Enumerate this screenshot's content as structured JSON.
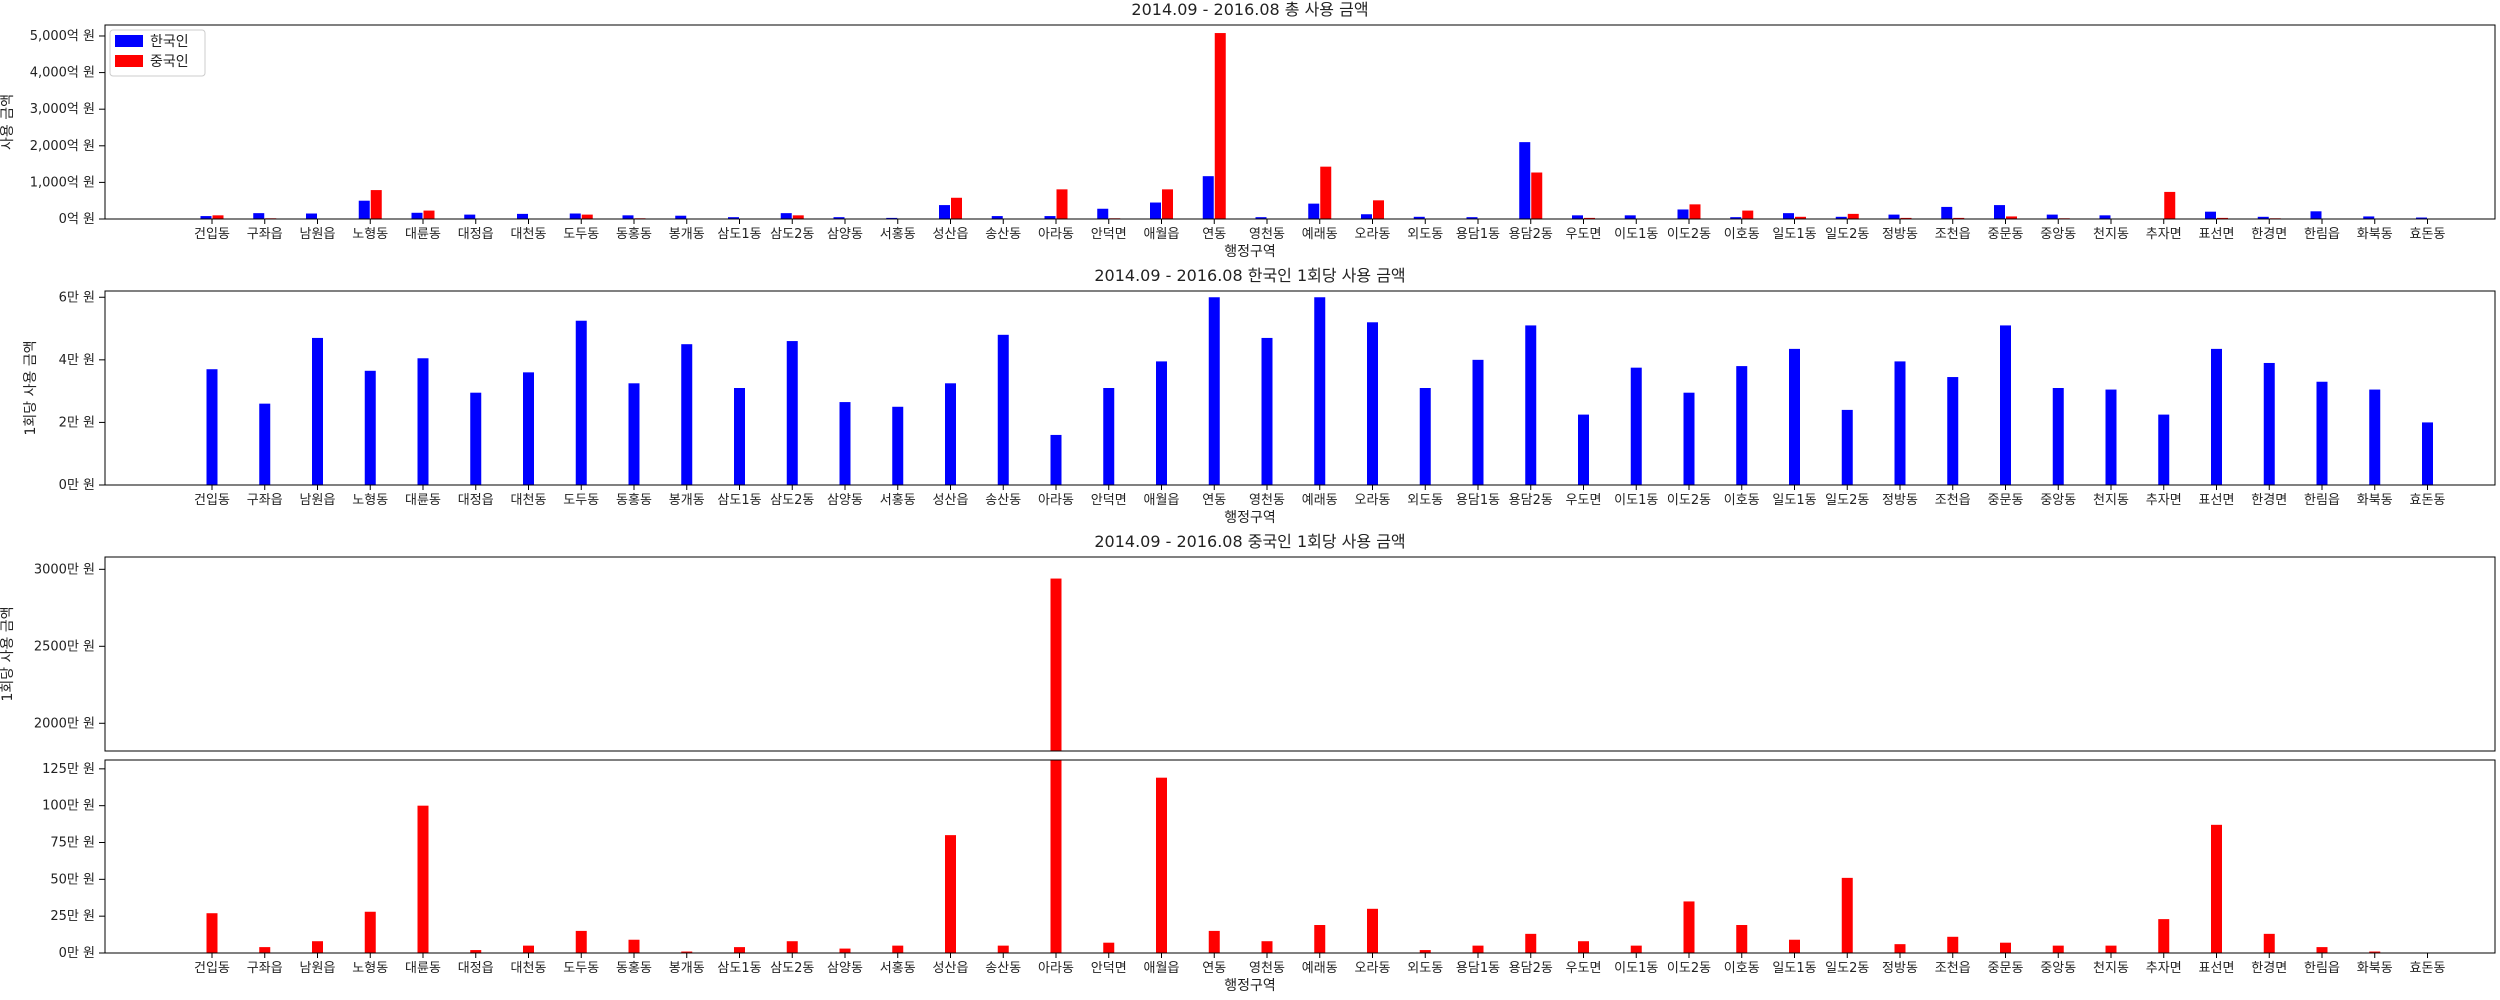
{
  "chart_data": [
    {
      "type": "bar",
      "title": "2014.09 - 2016.08 총 사용 금액",
      "xlabel": "행정구역",
      "ylabel": "사용 금액",
      "ylim": [
        0,
        5300
      ],
      "yticks": [
        0,
        1000,
        2000,
        3000,
        4000,
        5000
      ],
      "ytick_labels": [
        "0억 원",
        "1,000억 원",
        "2,000억 원",
        "3,000억 원",
        "4,000억 원",
        "5,000억 원"
      ],
      "legend": "top-left",
      "categories": [
        "건입동",
        "구좌읍",
        "남원읍",
        "노형동",
        "대륜동",
        "대정읍",
        "대천동",
        "도두동",
        "동홍동",
        "봉개동",
        "삼도1동",
        "삼도2동",
        "삼양동",
        "서홍동",
        "성산읍",
        "송산동",
        "아라동",
        "안덕면",
        "애월읍",
        "연동",
        "영천동",
        "예래동",
        "오라동",
        "외도동",
        "용담1동",
        "용담2동",
        "우도면",
        "이도1동",
        "이도2동",
        "이호동",
        "일도1동",
        "일도2동",
        "정방동",
        "조천읍",
        "중문동",
        "중앙동",
        "천지동",
        "추자면",
        "표선면",
        "한경면",
        "한림읍",
        "화북동",
        "효돈동"
      ],
      "series": [
        {
          "name": "한국인",
          "color": "#0000ff",
          "values": [
            80,
            160,
            150,
            500,
            170,
            120,
            140,
            150,
            100,
            90,
            50,
            160,
            50,
            30,
            380,
            80,
            80,
            280,
            450,
            1170,
            50,
            420,
            130,
            60,
            50,
            2100,
            100,
            100,
            260,
            50,
            160,
            60,
            120,
            330,
            380,
            120,
            100,
            10,
            200,
            60,
            210,
            70,
            40
          ]
        },
        {
          "name": "중국인",
          "color": "#ff0000",
          "values": [
            100,
            20,
            10,
            790,
            230,
            10,
            10,
            120,
            20,
            5,
            5,
            100,
            5,
            5,
            580,
            10,
            810,
            20,
            810,
            5080,
            10,
            1430,
            510,
            10,
            5,
            1270,
            30,
            10,
            400,
            230,
            60,
            140,
            30,
            30,
            70,
            20,
            10,
            740,
            30,
            20,
            10,
            5,
            5
          ]
        }
      ]
    },
    {
      "type": "bar",
      "title": "2014.09 - 2016.08 한국인 1회당 사용 금액",
      "xlabel": "행정구역",
      "ylabel": "1회당 사용 금액",
      "ylim": [
        0,
        6.2
      ],
      "yticks": [
        0,
        2,
        4,
        6
      ],
      "ytick_labels": [
        "0만 원",
        "2만 원",
        "4만 원",
        "6만 원"
      ],
      "categories": [
        "건입동",
        "구좌읍",
        "남원읍",
        "노형동",
        "대륜동",
        "대정읍",
        "대천동",
        "도두동",
        "동홍동",
        "봉개동",
        "삼도1동",
        "삼도2동",
        "삼양동",
        "서홍동",
        "성산읍",
        "송산동",
        "아라동",
        "안덕면",
        "애월읍",
        "연동",
        "영천동",
        "예래동",
        "오라동",
        "외도동",
        "용담1동",
        "용담2동",
        "우도면",
        "이도1동",
        "이도2동",
        "이호동",
        "일도1동",
        "일도2동",
        "정방동",
        "조천읍",
        "중문동",
        "중앙동",
        "천지동",
        "추자면",
        "표선면",
        "한경면",
        "한림읍",
        "화북동",
        "효돈동"
      ],
      "series": [
        {
          "name": "한국인",
          "color": "#0000ff",
          "values": [
            3.7,
            2.6,
            4.7,
            3.65,
            4.05,
            2.95,
            3.6,
            5.25,
            3.25,
            4.5,
            3.1,
            4.6,
            2.65,
            2.5,
            3.25,
            4.8,
            1.6,
            3.1,
            3.95,
            6.0,
            4.7,
            6.0,
            5.2,
            3.1,
            4.0,
            5.1,
            2.25,
            3.75,
            2.95,
            3.8,
            4.35,
            2.4,
            3.95,
            3.45,
            5.1,
            3.1,
            3.05,
            2.25,
            4.35,
            3.9,
            3.3,
            3.05,
            2.0
          ]
        }
      ]
    },
    {
      "type": "bar",
      "title": "2014.09 - 2016.08 중국인 1회당 사용 금액",
      "xlabel": "행정구역",
      "ylabel": "1회당 사용 금액",
      "broken_axis": true,
      "ylim_upper": [
        1820,
        3080
      ],
      "ylim_lower": [
        0,
        131
      ],
      "yticks_upper": [
        2000,
        2500,
        3000
      ],
      "ytick_labels_upper": [
        "2000만 원",
        "2500만 원",
        "3000만 원"
      ],
      "yticks_lower": [
        0,
        25,
        50,
        75,
        100,
        125
      ],
      "ytick_labels_lower": [
        "0만 원",
        "25만 원",
        "50만 원",
        "75만 원",
        "100만 원",
        "125만 원"
      ],
      "categories": [
        "건입동",
        "구좌읍",
        "남원읍",
        "노형동",
        "대륜동",
        "대정읍",
        "대천동",
        "도두동",
        "동홍동",
        "봉개동",
        "삼도1동",
        "삼도2동",
        "삼양동",
        "서홍동",
        "성산읍",
        "송산동",
        "아라동",
        "안덕면",
        "애월읍",
        "연동",
        "영천동",
        "예래동",
        "오라동",
        "외도동",
        "용담1동",
        "용담2동",
        "우도면",
        "이도1동",
        "이도2동",
        "이호동",
        "일도1동",
        "일도2동",
        "정방동",
        "조천읍",
        "중문동",
        "중앙동",
        "천지동",
        "추자면",
        "표선면",
        "한경면",
        "한림읍",
        "화북동",
        "효돈동"
      ],
      "series": [
        {
          "name": "중국인",
          "color": "#ff0000",
          "values": [
            27,
            4,
            8,
            28,
            100,
            2,
            5,
            15,
            9,
            1,
            4,
            8,
            3,
            5,
            80,
            5,
            2940,
            7,
            119,
            15,
            8,
            19,
            30,
            2,
            5,
            13,
            8,
            5,
            35,
            19,
            9,
            51,
            6,
            11,
            7,
            5,
            5,
            23,
            87,
            13,
            4,
            1,
            0
          ]
        }
      ]
    }
  ]
}
